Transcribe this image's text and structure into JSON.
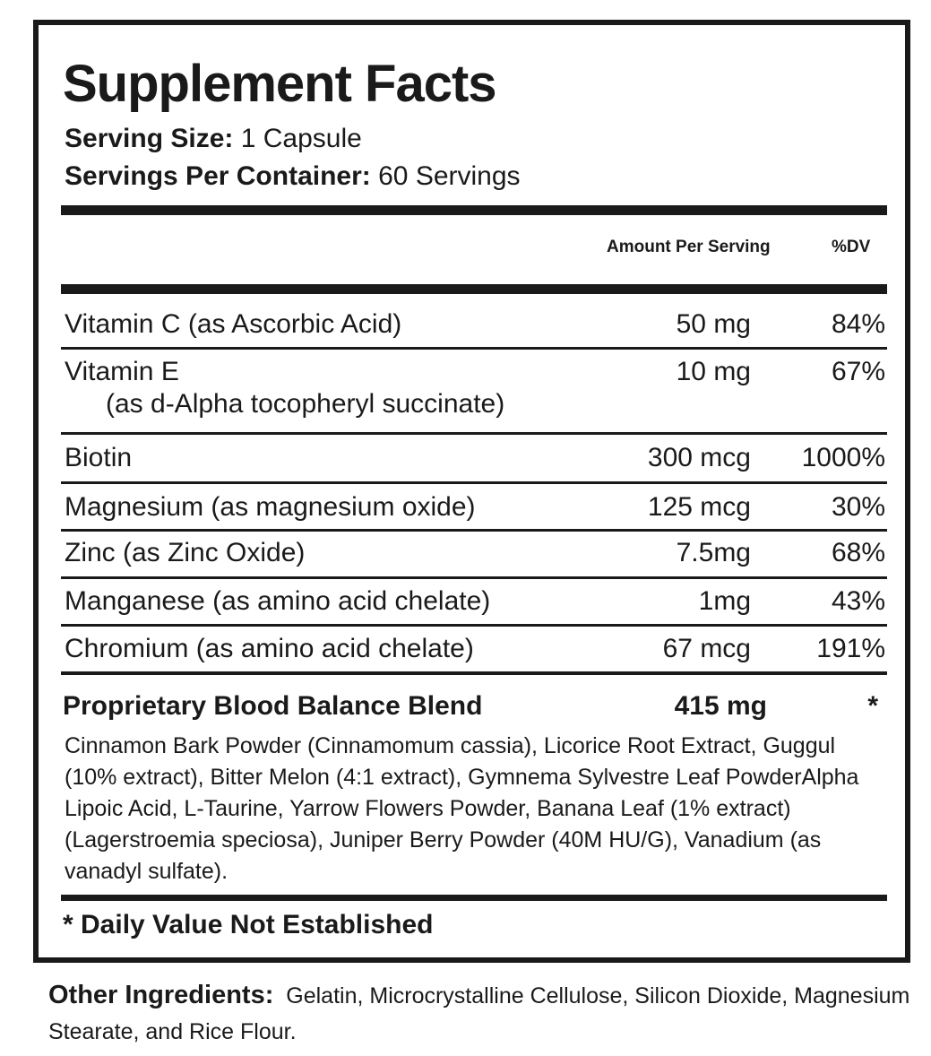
{
  "title": "Supplement Facts",
  "serving_size": {
    "label": "Serving Size:",
    "value": "1 Capsule"
  },
  "servings_per_container": {
    "label": "Servings Per Container:",
    "value": "60 Servings"
  },
  "header": {
    "amount": "Amount Per Serving",
    "dv": "%DV"
  },
  "rows": [
    {
      "name": "Vitamin C (as Ascorbic Acid)",
      "amount": "50 mg",
      "dv": "84%"
    },
    {
      "name": "Vitamin E",
      "sub": "(as d-Alpha tocopheryl succinate)",
      "amount": "10 mg",
      "dv": "67%"
    },
    {
      "name": "Biotin",
      "amount": "300 mcg",
      "dv": "1000%"
    },
    {
      "name": "Magnesium (as magnesium oxide)",
      "amount": "125 mcg",
      "dv": "30%"
    },
    {
      "name": "Zinc (as Zinc Oxide)",
      "amount": "7.5mg",
      "dv": "68%"
    },
    {
      "name": "Manganese (as amino acid chelate)",
      "amount": "1mg",
      "dv": "43%"
    },
    {
      "name": "Chromium (as amino acid chelate)",
      "amount": "67 mcg",
      "dv": "191%"
    }
  ],
  "blend": {
    "name": "Proprietary Blood Balance Blend",
    "amount": "415 mg",
    "dv": "*",
    "ingredients": "Cinnamon Bark Powder (Cinnamomum cassia), Licorice Root Extract, Guggul (10% extract), Bitter Melon (4:1 extract), Gymnema Sylvestre Leaf PowderAlpha Lipoic Acid, L-Taurine, Yarrow Flowers Powder, Banana Leaf (1% extract) (Lagerstroemia speciosa), Juniper Berry Powder (40M HU/G), Vanadium (as vanadyl sulfate)."
  },
  "footnote": "* Daily Value Not Established",
  "other_ingredients": {
    "label": "Other Ingredients:",
    "value": "Gelatin, Microcrystalline Cellulose, Silicon Dioxide, Magnesium Stearate, and Rice Flour."
  }
}
